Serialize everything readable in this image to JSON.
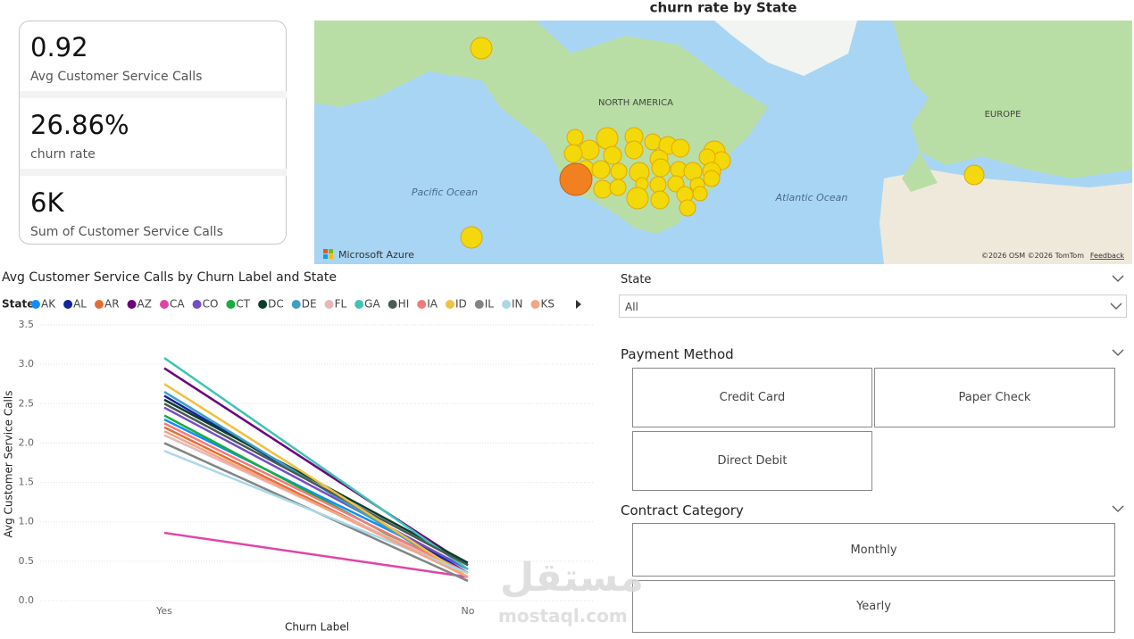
{
  "cards": [
    {
      "value": "0.92",
      "label": "Avg Customer Service Calls"
    },
    {
      "value": "26.86%",
      "label": "churn rate"
    },
    {
      "value": "6K",
      "label": "Sum of Customer Service Calls"
    }
  ],
  "map": {
    "title": "churn rate by State",
    "labels": [
      "NORTH AMERICA",
      "EUROPE",
      "Pacific Ocean",
      "Atlantic Ocean"
    ],
    "brand": "Microsoft Azure",
    "attribution": "©2026 OSM ©2026 TomTom",
    "feedback": "Feedback"
  },
  "chart_data": {
    "type": "line",
    "title": "Avg Customer Service Calls by Churn Label and State",
    "legend_title": "State",
    "x_label": "Churn Label",
    "y_label": "Avg Customer Service Calls",
    "categories": [
      "Yes",
      "No"
    ],
    "ylim": [
      0,
      3.5
    ],
    "yticks": [
      {
        "value": 0,
        "label": "0.0"
      },
      0.5,
      {
        "value": 1,
        "label": "1.0"
      },
      1.5,
      {
        "value": 2,
        "label": "2.0"
      },
      2.5,
      {
        "value": 3,
        "label": "3.0"
      },
      3.5
    ],
    "grid": true,
    "series": [
      {
        "name": "AK",
        "color": "#118dff",
        "values": [
          2.3,
          0.4
        ]
      },
      {
        "name": "AL",
        "color": "#12239e",
        "values": [
          2.6,
          0.35
        ]
      },
      {
        "name": "AR",
        "color": "#e66c37",
        "values": [
          2.2,
          0.3
        ]
      },
      {
        "name": "AZ",
        "color": "#6b007b",
        "values": [
          2.95,
          0.45
        ]
      },
      {
        "name": "CA",
        "color": "#e044a7",
        "values": [
          0.86,
          0.3
        ]
      },
      {
        "name": "CO",
        "color": "#744ec2",
        "values": [
          2.45,
          0.4
        ]
      },
      {
        "name": "CT",
        "color": "#1aab40",
        "values": [
          2.35,
          0.3
        ]
      },
      {
        "name": "DC",
        "color": "#0e3d2f",
        "values": [
          2.55,
          0.48
        ]
      },
      {
        "name": "DE",
        "color": "#3f9fc4",
        "values": [
          2.65,
          0.3
        ]
      },
      {
        "name": "FL",
        "color": "#e6b8b8",
        "values": [
          2.1,
          0.35
        ]
      },
      {
        "name": "GA",
        "color": "#41c3b4",
        "values": [
          3.08,
          0.4
        ]
      },
      {
        "name": "HI",
        "color": "#4a5a55",
        "values": [
          2.5,
          0.45
        ]
      },
      {
        "name": "IA",
        "color": "#f07b7b",
        "values": [
          2.25,
          0.35
        ]
      },
      {
        "name": "ID",
        "color": "#f0c040",
        "values": [
          2.75,
          0.3
        ]
      },
      {
        "name": "IL",
        "color": "#7f8585",
        "values": [
          2.0,
          0.25
        ]
      },
      {
        "name": "IN",
        "color": "#a8d8ea",
        "values": [
          1.9,
          0.35
        ]
      },
      {
        "name": "KS",
        "color": "#f4a582",
        "values": [
          2.15,
          0.3
        ]
      }
    ]
  },
  "filters": {
    "state": {
      "title": "State",
      "value": "All"
    },
    "payment": {
      "title": "Payment Method",
      "options": [
        "Credit Card",
        "Paper Check",
        "Direct Debit"
      ]
    },
    "contract": {
      "title": "Contract Category",
      "options": [
        "Monthly",
        "Yearly"
      ]
    }
  },
  "watermark": {
    "arabic": "مستقل",
    "latin": "mostaql.com"
  }
}
